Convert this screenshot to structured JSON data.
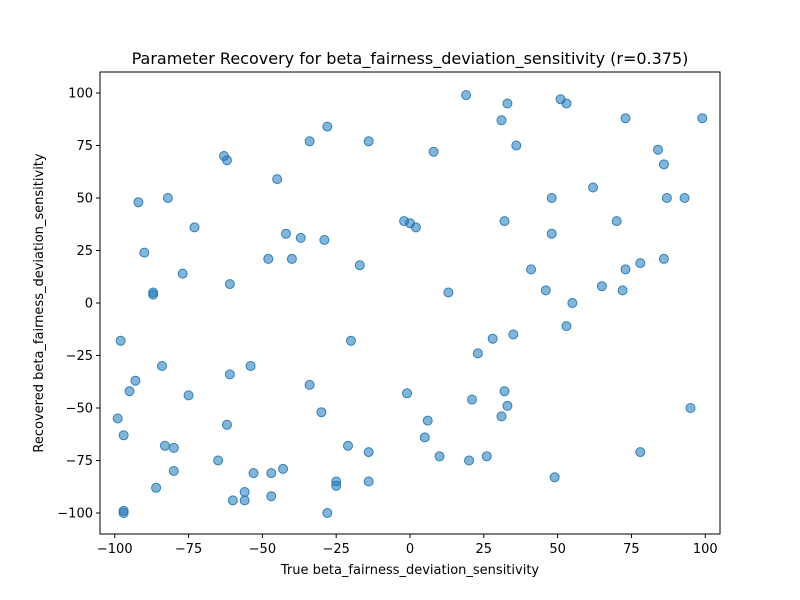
{
  "chart_data": {
    "type": "scatter",
    "title": "Parameter Recovery for beta_fairness_deviation_sensitivity (r=0.375)",
    "xlabel": "True beta_fairness_deviation_sensitivity",
    "ylabel": "Recovered beta_fairness_deviation_sensitivity",
    "xlim": [
      -105,
      105
    ],
    "ylim": [
      -110,
      110
    ],
    "xticks": [
      -100,
      -75,
      -50,
      -25,
      0,
      25,
      50,
      75,
      100
    ],
    "yticks": [
      -100,
      -75,
      -50,
      -25,
      0,
      25,
      50,
      75,
      100
    ],
    "grid": false,
    "marker_color": "#1f77b4",
    "marker_alpha": 0.55,
    "points": [
      [
        -98,
        -18
      ],
      [
        -99,
        -55
      ],
      [
        -97,
        -63
      ],
      [
        -97,
        -100
      ],
      [
        -97,
        -99
      ],
      [
        -95,
        -42
      ],
      [
        -93,
        -37
      ],
      [
        -92,
        48
      ],
      [
        -90,
        24
      ],
      [
        -87,
        4
      ],
      [
        -87,
        5
      ],
      [
        -86,
        -88
      ],
      [
        -84,
        -30
      ],
      [
        -83,
        -68
      ],
      [
        -82,
        50
      ],
      [
        -80,
        -80
      ],
      [
        -80,
        -69
      ],
      [
        -77,
        14
      ],
      [
        -75,
        -44
      ],
      [
        -73,
        36
      ],
      [
        -65,
        -75
      ],
      [
        -63,
        70
      ],
      [
        -62,
        68
      ],
      [
        -62,
        -58
      ],
      [
        -61,
        9
      ],
      [
        -61,
        -34
      ],
      [
        -60,
        -94
      ],
      [
        -56,
        -90
      ],
      [
        -56,
        -94
      ],
      [
        -54,
        -30
      ],
      [
        -53,
        -81
      ],
      [
        -48,
        21
      ],
      [
        -47,
        -81
      ],
      [
        -47,
        -92
      ],
      [
        -45,
        59
      ],
      [
        -43,
        -79
      ],
      [
        -42,
        33
      ],
      [
        -40,
        21
      ],
      [
        -37,
        31
      ],
      [
        -34,
        77
      ],
      [
        -34,
        -39
      ],
      [
        -30,
        -52
      ],
      [
        -29,
        30
      ],
      [
        -28,
        84
      ],
      [
        -28,
        -100
      ],
      [
        -25,
        -85
      ],
      [
        -25,
        -87
      ],
      [
        -21,
        -68
      ],
      [
        -20,
        -18
      ],
      [
        -17,
        18
      ],
      [
        -14,
        77
      ],
      [
        -14,
        -71
      ],
      [
        -14,
        -85
      ],
      [
        -2,
        39
      ],
      [
        -1,
        -43
      ],
      [
        0,
        38
      ],
      [
        2,
        36
      ],
      [
        5,
        -64
      ],
      [
        6,
        -56
      ],
      [
        8,
        72
      ],
      [
        10,
        -73
      ],
      [
        13,
        5
      ],
      [
        19,
        99
      ],
      [
        20,
        -75
      ],
      [
        21,
        -46
      ],
      [
        23,
        -24
      ],
      [
        26,
        -73
      ],
      [
        28,
        -17
      ],
      [
        31,
        87
      ],
      [
        31,
        -54
      ],
      [
        32,
        39
      ],
      [
        32,
        -42
      ],
      [
        33,
        95
      ],
      [
        33,
        -49
      ],
      [
        35,
        -15
      ],
      [
        36,
        75
      ],
      [
        41,
        16
      ],
      [
        46,
        6
      ],
      [
        48,
        33
      ],
      [
        48,
        50
      ],
      [
        49,
        -83
      ],
      [
        51,
        97
      ],
      [
        53,
        95
      ],
      [
        53,
        -11
      ],
      [
        55,
        0
      ],
      [
        62,
        55
      ],
      [
        65,
        8
      ],
      [
        70,
        39
      ],
      [
        72,
        6
      ],
      [
        73,
        16
      ],
      [
        73,
        88
      ],
      [
        78,
        19
      ],
      [
        78,
        -71
      ],
      [
        84,
        73
      ],
      [
        86,
        66
      ],
      [
        86,
        21
      ],
      [
        87,
        50
      ],
      [
        93,
        50
      ],
      [
        95,
        -50
      ],
      [
        99,
        88
      ]
    ]
  }
}
